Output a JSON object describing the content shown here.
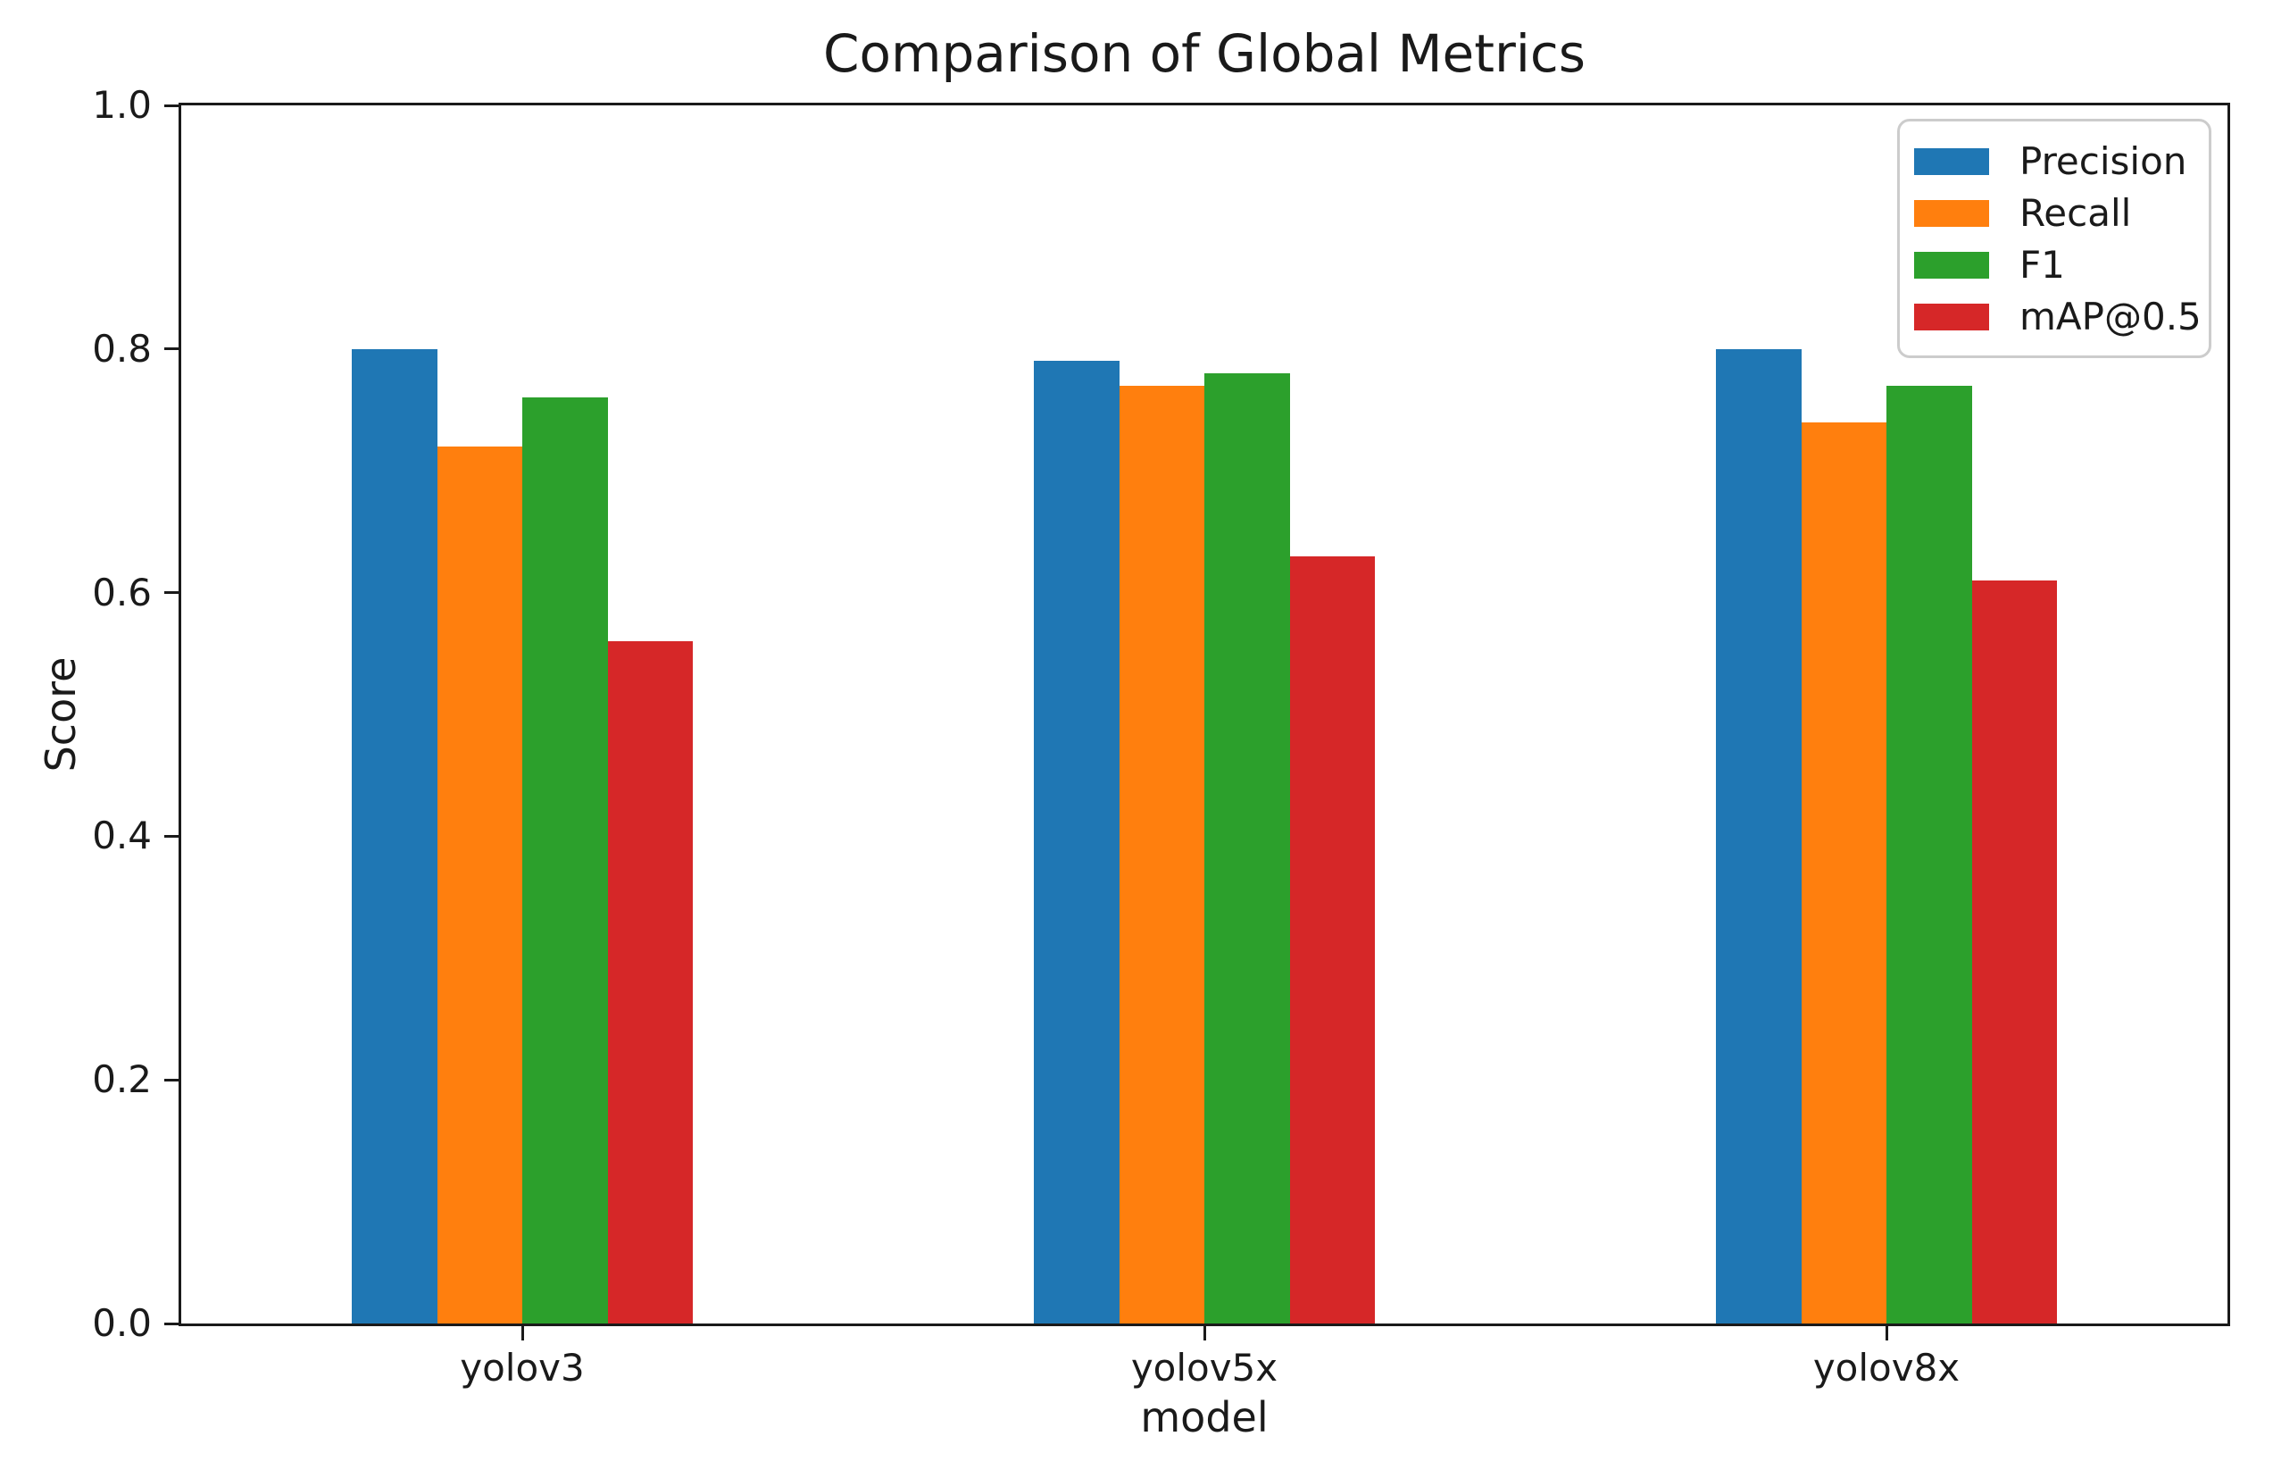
{
  "chart_data": {
    "type": "bar",
    "title": "Comparison of Global Metrics",
    "xlabel": "model",
    "ylabel": "Score",
    "categories": [
      "yolov3",
      "yolov5x",
      "yolov8x"
    ],
    "series": [
      {
        "name": "Precision",
        "color": "#1f77b4",
        "values": [
          0.8,
          0.79,
          0.8
        ]
      },
      {
        "name": "Recall",
        "color": "#ff7f0e",
        "values": [
          0.72,
          0.77,
          0.74
        ]
      },
      {
        "name": "F1",
        "color": "#2ca02c",
        "values": [
          0.76,
          0.78,
          0.77
        ]
      },
      {
        "name": "mAP@0.5",
        "color": "#d62728",
        "values": [
          0.56,
          0.63,
          0.61
        ]
      }
    ],
    "ylim": [
      0.0,
      1.0
    ],
    "yticks": [
      0.0,
      0.2,
      0.4,
      0.6,
      0.8,
      1.0
    ],
    "ytick_labels": [
      "0.0",
      "0.2",
      "0.4",
      "0.6",
      "0.8",
      "1.0"
    ],
    "grid": false,
    "legend_position": "upper right",
    "bar_width_fraction": 0.125
  }
}
